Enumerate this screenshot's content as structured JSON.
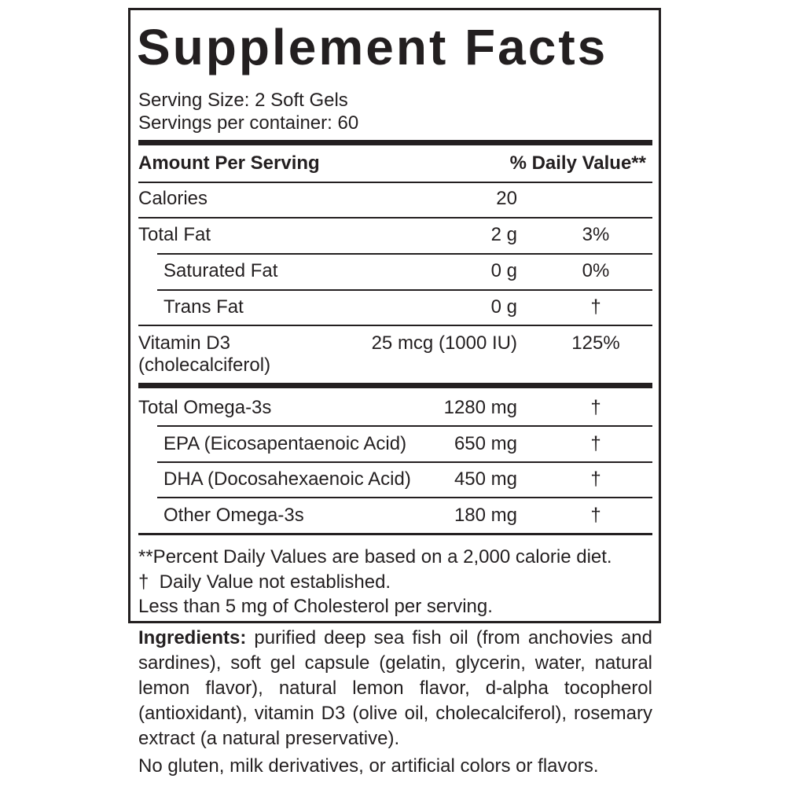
{
  "title": "Supplement Facts",
  "serving_size": "Serving Size: 2 Soft Gels",
  "servings_per_container": "Servings per container: 60",
  "header": {
    "amount": "Amount Per Serving",
    "dv": "% Daily Value**"
  },
  "rows": [
    {
      "name": "Calories",
      "amount": "20"
    },
    {
      "name": "Total Fat",
      "amount": "2 g",
      "dv": "3%"
    },
    {
      "name": "Saturated Fat",
      "amount": "0 g",
      "dv": "0%"
    },
    {
      "name": "Trans Fat",
      "amount": "0 g",
      "dv": "†"
    },
    {
      "name": "Vitamin D3",
      "sub": "(cholecalciferol)",
      "amount": "25 mcg (1000 IU)",
      "dv": "125%"
    }
  ],
  "omega_rows": [
    {
      "name": "Total Omega-3s",
      "amount": "1280 mg",
      "dv": "†"
    },
    {
      "name": "EPA (Eicosapentaenoic Acid)",
      "amount": "650 mg",
      "dv": "†"
    },
    {
      "name": "DHA (Docosahexaenoic Acid)",
      "amount": "450 mg",
      "dv": "†"
    },
    {
      "name": "Other Omega-3s",
      "amount": "180 mg",
      "dv": "†"
    }
  ],
  "footnotes": [
    "**Percent Daily Values are based on a 2,000 calorie diet.",
    "†  Daily Value not established.",
    "Less than 5 mg of Cholesterol per serving."
  ],
  "ingredients": {
    "label": "Ingredients:",
    "text": "purified deep sea fish oil (from anchovies and sardines), soft gel capsule (gelatin, glycerin, water, natural lemon flavor), natural lemon flavor, d-alpha tocopherol (antioxidant), vitamin D3 (olive oil, cholecalciferol), rosemary extract (a natural preservative)."
  },
  "note": "No gluten, milk derivatives, or artificial colors or flavors."
}
